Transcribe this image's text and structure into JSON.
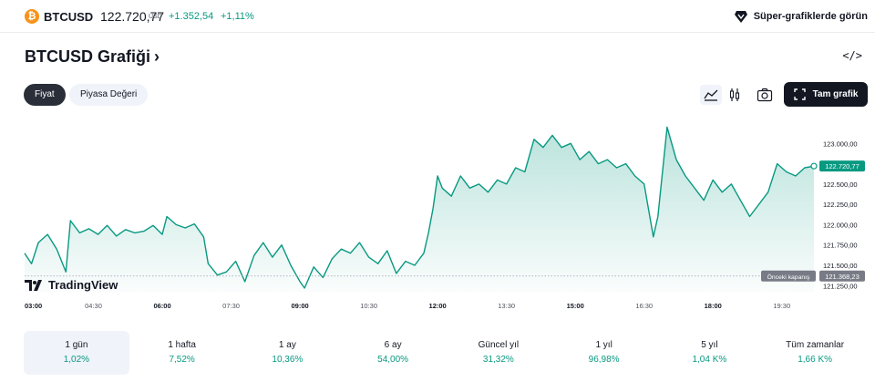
{
  "ticker": {
    "coin_glyph": "₿",
    "symbol": "BTCUSD",
    "price": "122.720,77",
    "currency": "USD",
    "change": "+1.352,54",
    "change_pct": "+1,11%",
    "positive_color": "#089981",
    "super_link": "Süper-grafiklerde görün"
  },
  "header": {
    "title": "BTCUSD Grafiği",
    "chevron": "›",
    "embed_glyph": "</>"
  },
  "tabs": [
    {
      "label": "Fiyat",
      "active": true
    },
    {
      "label": "Piyasa Değeri",
      "active": false
    }
  ],
  "toolbar": {
    "area_icon": "area-chart-icon",
    "candle_icon": "candlestick-icon",
    "camera_icon": "camera-icon",
    "fullscreen_label": "Tam grafik"
  },
  "chart_data": {
    "type": "area",
    "y_ticks": [
      "123.000,00",
      "122.500,00",
      "122.250,00",
      "122.000,00",
      "121.750,00",
      "121.500,00",
      "121.250,00"
    ],
    "x_ticks": [
      {
        "label": "03:00",
        "bold": true
      },
      {
        "label": "04:30",
        "bold": false
      },
      {
        "label": "06:00",
        "bold": true
      },
      {
        "label": "07:30",
        "bold": false
      },
      {
        "label": "09:00",
        "bold": true
      },
      {
        "label": "10:30",
        "bold": false
      },
      {
        "label": "12:00",
        "bold": true
      },
      {
        "label": "13:30",
        "bold": false
      },
      {
        "label": "15:00",
        "bold": true
      },
      {
        "label": "16:30",
        "bold": false
      },
      {
        "label": "18:00",
        "bold": true
      },
      {
        "label": "19:30",
        "bold": false
      }
    ],
    "current_price_label": "122.720,77",
    "previous_close_caption": "Önceki kapanış",
    "previous_close_label": "121.368,23",
    "previous_close": 121368.23,
    "current_price": 122720.77,
    "ylim": [
      121175,
      123250
    ],
    "x_start_hour": 3,
    "x_end_hour": 20.2,
    "line_color": "#089981",
    "series": [
      {
        "values": [
          [
            3.0,
            121650
          ],
          [
            3.15,
            121520
          ],
          [
            3.3,
            121780
          ],
          [
            3.5,
            121880
          ],
          [
            3.7,
            121700
          ],
          [
            3.9,
            121420
          ],
          [
            4.0,
            122050
          ],
          [
            4.2,
            121900
          ],
          [
            4.4,
            121950
          ],
          [
            4.6,
            121880
          ],
          [
            4.8,
            121990
          ],
          [
            5.0,
            121860
          ],
          [
            5.2,
            121940
          ],
          [
            5.4,
            121900
          ],
          [
            5.6,
            121920
          ],
          [
            5.8,
            121990
          ],
          [
            6.0,
            121880
          ],
          [
            6.1,
            122100
          ],
          [
            6.3,
            122000
          ],
          [
            6.5,
            121960
          ],
          [
            6.7,
            122010
          ],
          [
            6.9,
            121850
          ],
          [
            7.0,
            121520
          ],
          [
            7.2,
            121380
          ],
          [
            7.4,
            121420
          ],
          [
            7.6,
            121550
          ],
          [
            7.8,
            121300
          ],
          [
            8.0,
            121620
          ],
          [
            8.2,
            121780
          ],
          [
            8.4,
            121600
          ],
          [
            8.6,
            121750
          ],
          [
            8.8,
            121500
          ],
          [
            9.0,
            121300
          ],
          [
            9.1,
            121220
          ],
          [
            9.3,
            121480
          ],
          [
            9.5,
            121350
          ],
          [
            9.7,
            121580
          ],
          [
            9.9,
            121700
          ],
          [
            10.1,
            121650
          ],
          [
            10.3,
            121780
          ],
          [
            10.5,
            121600
          ],
          [
            10.7,
            121520
          ],
          [
            10.9,
            121680
          ],
          [
            11.1,
            121400
          ],
          [
            11.3,
            121550
          ],
          [
            11.5,
            121500
          ],
          [
            11.7,
            121650
          ],
          [
            11.8,
            121900
          ],
          [
            11.9,
            122200
          ],
          [
            12.0,
            122600
          ],
          [
            12.1,
            122450
          ],
          [
            12.3,
            122350
          ],
          [
            12.5,
            122600
          ],
          [
            12.7,
            122450
          ],
          [
            12.9,
            122500
          ],
          [
            13.1,
            122400
          ],
          [
            13.3,
            122550
          ],
          [
            13.5,
            122500
          ],
          [
            13.7,
            122700
          ],
          [
            13.9,
            122650
          ],
          [
            14.1,
            123050
          ],
          [
            14.3,
            122950
          ],
          [
            14.5,
            123100
          ],
          [
            14.7,
            122950
          ],
          [
            14.9,
            123000
          ],
          [
            15.1,
            122800
          ],
          [
            15.3,
            122900
          ],
          [
            15.5,
            122750
          ],
          [
            15.7,
            122800
          ],
          [
            15.9,
            122700
          ],
          [
            16.1,
            122750
          ],
          [
            16.3,
            122600
          ],
          [
            16.5,
            122500
          ],
          [
            16.7,
            121850
          ],
          [
            16.8,
            122100
          ],
          [
            17.0,
            123200
          ],
          [
            17.2,
            122800
          ],
          [
            17.4,
            122600
          ],
          [
            17.6,
            122450
          ],
          [
            17.8,
            122300
          ],
          [
            18.0,
            122550
          ],
          [
            18.2,
            122400
          ],
          [
            18.4,
            122500
          ],
          [
            18.6,
            122300
          ],
          [
            18.8,
            122100
          ],
          [
            19.0,
            122250
          ],
          [
            19.2,
            122400
          ],
          [
            19.4,
            122750
          ],
          [
            19.6,
            122650
          ],
          [
            19.8,
            122600
          ],
          [
            20.0,
            122700
          ],
          [
            20.2,
            122720.77
          ]
        ]
      }
    ]
  },
  "branding": {
    "logo_text": "TradingView"
  },
  "periods": [
    {
      "label": "1 gün",
      "value": "1,02%",
      "active": true
    },
    {
      "label": "1 hafta",
      "value": "7,52%",
      "active": false
    },
    {
      "label": "1 ay",
      "value": "10,36%",
      "active": false
    },
    {
      "label": "6 ay",
      "value": "54,00%",
      "active": false
    },
    {
      "label": "Güncel yıl",
      "value": "31,32%",
      "active": false
    },
    {
      "label": "1 yıl",
      "value": "96,98%",
      "active": false
    },
    {
      "label": "5 yıl",
      "value": "1,04 K%",
      "active": false
    },
    {
      "label": "Tüm zamanlar",
      "value": "1,66 K%",
      "active": false
    }
  ]
}
